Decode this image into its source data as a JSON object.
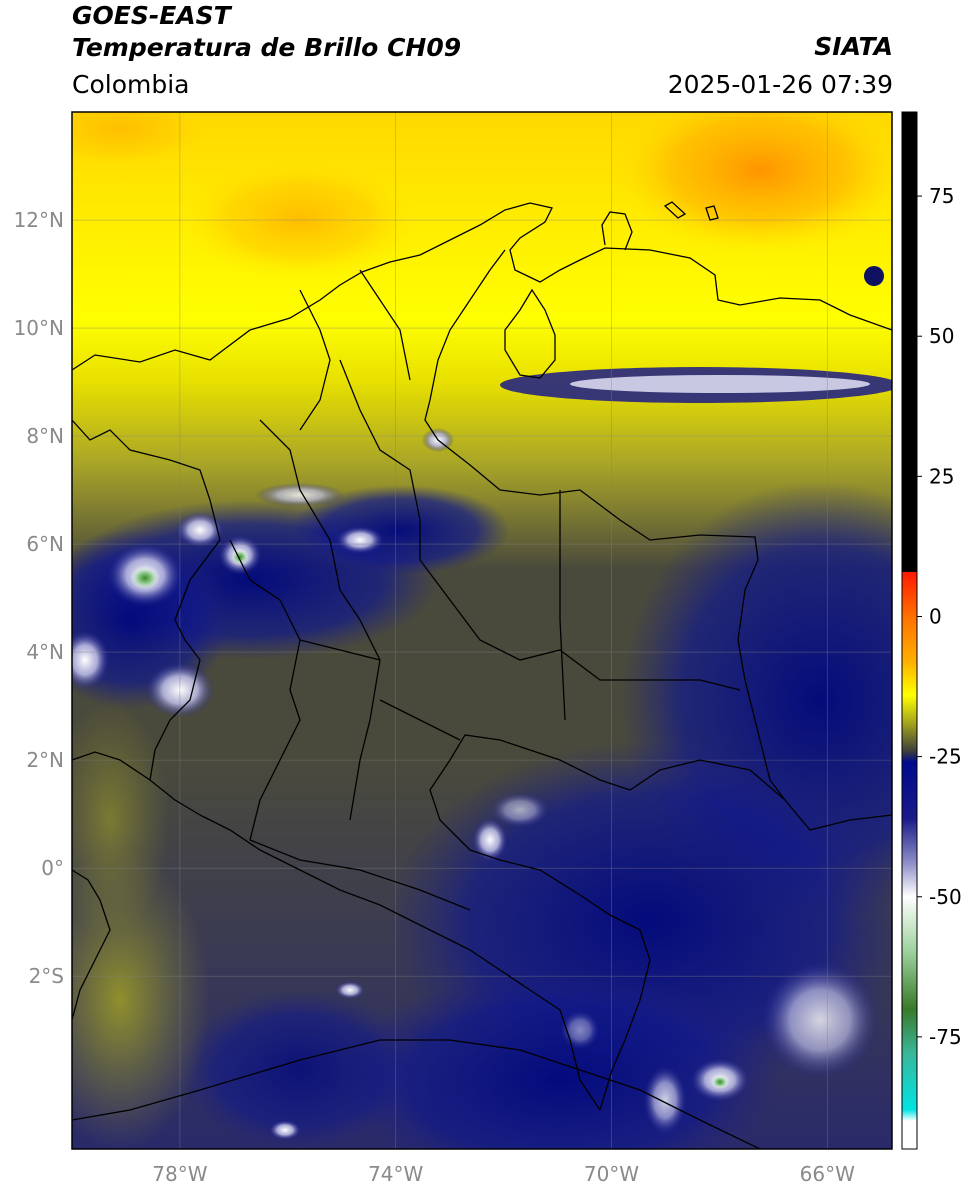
{
  "header": {
    "satellite": "GOES-EAST",
    "product": "Temperatura de Brillo CH09",
    "region": "Colombia",
    "source": "SIATA",
    "datetime": "2025-01-26 07:39"
  },
  "map": {
    "lon_range": [
      -80.0,
      -64.8
    ],
    "lat_range": [
      -5.2,
      14.0
    ],
    "lat_ticks": [
      {
        "value": 12,
        "label": "12°N"
      },
      {
        "value": 10,
        "label": "10°N"
      },
      {
        "value": 8,
        "label": "8°N"
      },
      {
        "value": 6,
        "label": "6°N"
      },
      {
        "value": 4,
        "label": "4°N"
      },
      {
        "value": 2,
        "label": "2°N"
      },
      {
        "value": 0,
        "label": "0°"
      },
      {
        "value": -2,
        "label": "2°S"
      }
    ],
    "lon_ticks": [
      {
        "value": -78,
        "label": "78°W"
      },
      {
        "value": -74,
        "label": "74°W"
      },
      {
        "value": -70,
        "label": "70°W"
      },
      {
        "value": -66,
        "label": "66°W"
      }
    ],
    "grid": true
  },
  "colorbar": {
    "range": [
      -95,
      90
    ],
    "ticks": [
      {
        "value": 75,
        "label": "75"
      },
      {
        "value": 50,
        "label": "50"
      },
      {
        "value": 25,
        "label": "25"
      },
      {
        "value": 0,
        "label": "0"
      },
      {
        "value": -25,
        "label": "-25"
      },
      {
        "value": -50,
        "label": "-50"
      },
      {
        "value": -75,
        "label": "-75"
      }
    ],
    "stops": [
      {
        "value": 90,
        "color": "#000000"
      },
      {
        "value": 8,
        "color": "#000000"
      },
      {
        "value": 7.9,
        "color": "#ff1a00"
      },
      {
        "value": 0,
        "color": "#ff7000"
      },
      {
        "value": -8,
        "color": "#ffb000"
      },
      {
        "value": -14,
        "color": "#ffff00"
      },
      {
        "value": -19,
        "color": "#a4a41c"
      },
      {
        "value": -24,
        "color": "#3f3f3c"
      },
      {
        "value": -26,
        "color": "#000a8e"
      },
      {
        "value": -36,
        "color": "#1a1a8a"
      },
      {
        "value": -44,
        "color": "#8f8fc8"
      },
      {
        "value": -50,
        "color": "#ffffff"
      },
      {
        "value": -60,
        "color": "#9ad09a"
      },
      {
        "value": -70,
        "color": "#3a7a2a"
      },
      {
        "value": -78,
        "color": "#38b89a"
      },
      {
        "value": -88,
        "color": "#00e4e4"
      },
      {
        "value": -90,
        "color": "#ffffff"
      },
      {
        "value": -95,
        "color": "#ffffff"
      }
    ]
  }
}
